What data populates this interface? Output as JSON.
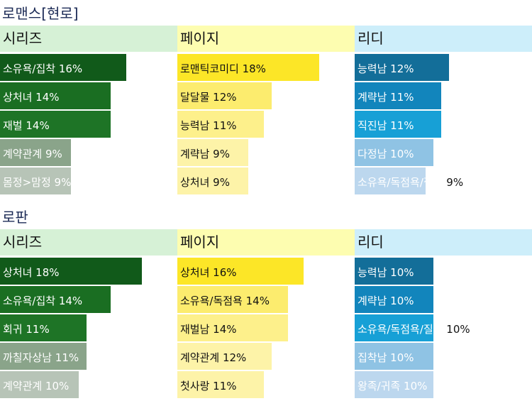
{
  "colors": {
    "series_head": "#d6f1d6",
    "page_head": "#fdfdb0",
    "ridi_head": "#cdeefa",
    "title_text": "#1b2a55"
  },
  "chart_data": [
    {
      "type": "bar",
      "title": "로맨스[현로]",
      "unit": "%",
      "platforms": [
        {
          "name": "시리즈",
          "categories": [
            "소유욕/집착",
            "상처녀",
            "재벌",
            "계약관계",
            "몸정>맘정"
          ],
          "values": [
            16,
            14,
            14,
            9,
            9
          ],
          "bar_colors": [
            "#115a1a",
            "#1a6e22",
            "#1e7426",
            "#8aa48a",
            "#b7c4b7"
          ],
          "text_colors": [
            "#ffffff",
            "#ffffff",
            "#ffffff",
            "#ffffff",
            "#ffffff"
          ]
        },
        {
          "name": "페이지",
          "categories": [
            "로맨틱코미디",
            "달달물",
            "능력남",
            "계략남",
            "상처녀"
          ],
          "values": [
            18,
            12,
            11,
            9,
            9
          ],
          "bar_colors": [
            "#fce627",
            "#fcec6e",
            "#fdf08b",
            "#fdf3a8",
            "#fdf3a8"
          ],
          "text_colors": [
            "#111111",
            "#111111",
            "#111111",
            "#111111",
            "#111111"
          ]
        },
        {
          "name": "리디",
          "categories": [
            "능력남",
            "계략남",
            "직진남",
            "다정남",
            "소유욕/독점욕/질투"
          ],
          "values": [
            12,
            11,
            11,
            10,
            9
          ],
          "bar_colors": [
            "#136e99",
            "#1285bc",
            "#17a0d6",
            "#8fc3e4",
            "#bcd7ee"
          ],
          "text_colors": [
            "#ffffff",
            "#ffffff",
            "#ffffff",
            "#ffffff",
            "#ffffff"
          ]
        }
      ]
    },
    {
      "type": "bar",
      "title": "로판",
      "unit": "%",
      "platforms": [
        {
          "name": "시리즈",
          "categories": [
            "상처녀",
            "소유욕/집착",
            "회귀",
            "까칠자상남",
            "계약관계"
          ],
          "values": [
            18,
            14,
            11,
            11,
            10
          ],
          "bar_colors": [
            "#115a1a",
            "#1a6e22",
            "#1e7426",
            "#8aa48a",
            "#b7c4b7"
          ],
          "text_colors": [
            "#ffffff",
            "#ffffff",
            "#ffffff",
            "#ffffff",
            "#ffffff"
          ]
        },
        {
          "name": "페이지",
          "categories": [
            "상처녀",
            "소유욕/독점욕",
            "재벌남",
            "계약관계",
            "첫사랑"
          ],
          "values": [
            16,
            14,
            14,
            12,
            11
          ],
          "bar_colors": [
            "#fce627",
            "#fcec6e",
            "#fdf08b",
            "#fdf3a8",
            "#fdf3a8"
          ],
          "text_colors": [
            "#111111",
            "#111111",
            "#111111",
            "#111111",
            "#111111"
          ]
        },
        {
          "name": "리디",
          "categories": [
            "능력남",
            "계략남",
            "소유욕/독점욕/질투",
            "집착남",
            "왕족/귀족"
          ],
          "values": [
            10,
            10,
            10,
            10,
            10
          ],
          "bar_colors": [
            "#136e99",
            "#1285bc",
            "#17a0d6",
            "#8fc3e4",
            "#bcd7ee"
          ],
          "text_colors": [
            "#ffffff",
            "#ffffff",
            "#ffffff",
            "#ffffff",
            "#ffffff"
          ]
        }
      ]
    }
  ]
}
